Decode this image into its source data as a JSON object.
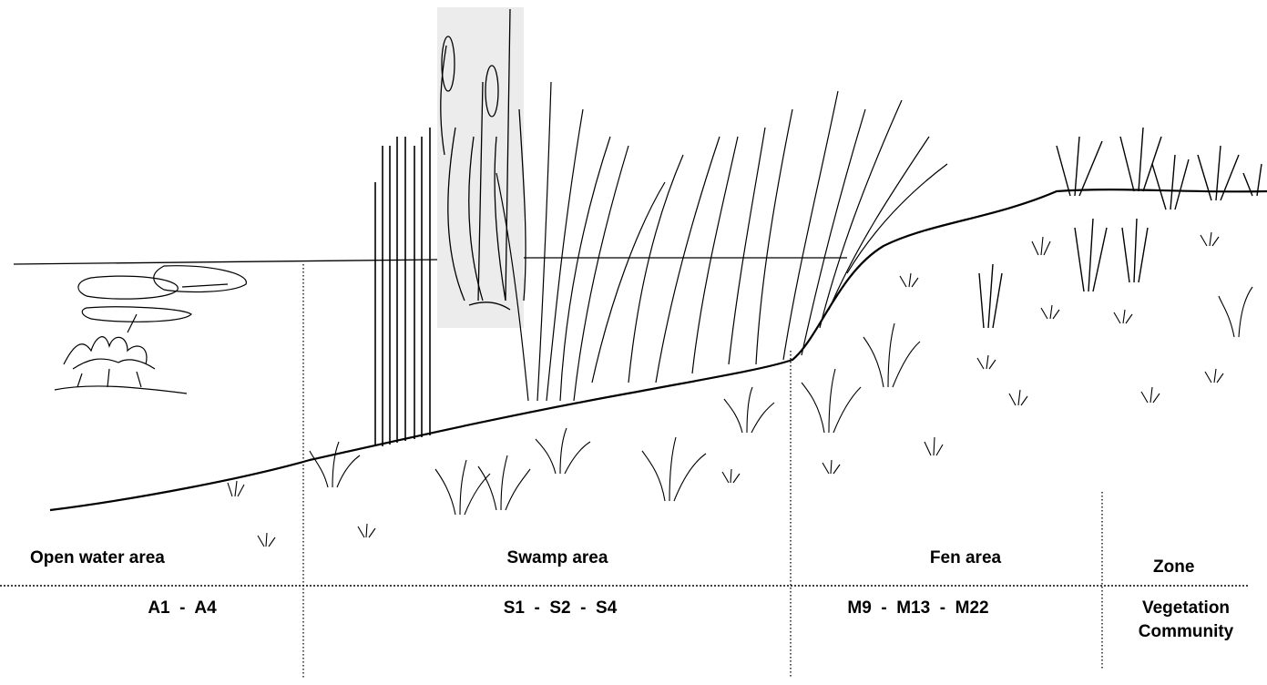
{
  "zones": [
    {
      "name": "Open water area",
      "communities": "A1  -  A4"
    },
    {
      "name": "Swamp area",
      "communities": "S1  -  S2  -  S4"
    },
    {
      "name": "Fen area",
      "communities": "M9  -  M13  -  M22"
    }
  ],
  "legend": {
    "zone_label": "Zone",
    "community_label_line1": "Vegetation",
    "community_label_line2": "Community"
  },
  "colors": {
    "ink": "#000000",
    "background": "#ffffff",
    "panel": "#ececec"
  }
}
